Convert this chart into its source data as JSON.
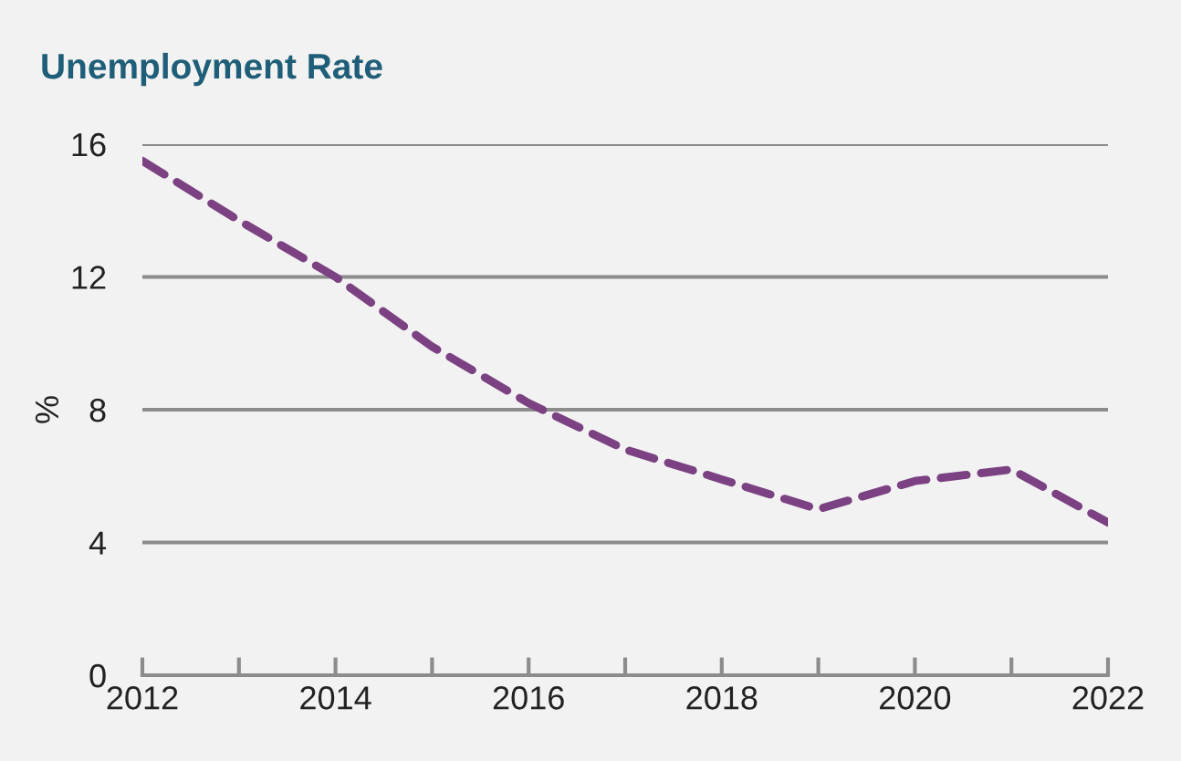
{
  "chart_data": {
    "type": "line",
    "title": "Unemployment Rate",
    "ylabel": "%",
    "x": [
      2012,
      2013,
      2014,
      2015,
      2016,
      2017,
      2018,
      2019,
      2020,
      2021,
      2022
    ],
    "series": [
      {
        "color": "#7b4182",
        "values": [
          15.5,
          13.7,
          12.0,
          9.9,
          8.2,
          6.8,
          5.9,
          5.0,
          5.85,
          6.2,
          4.6
        ]
      }
    ],
    "xlim": [
      2012,
      2022
    ],
    "xticks": [
      2012,
      {
        "value": 2013,
        "label": null
      },
      2014,
      {
        "value": 2015,
        "label": null
      },
      2016,
      {
        "value": 2017,
        "label": null
      },
      2018,
      {
        "value": 2019,
        "label": null
      },
      2020,
      {
        "value": 2021,
        "label": null
      },
      2022
    ],
    "ylim": [
      0,
      16
    ],
    "yticks": [
      0,
      4,
      8,
      12,
      16
    ],
    "grid": "y",
    "legend": false,
    "line_style": "dashed",
    "marker": "none"
  }
}
